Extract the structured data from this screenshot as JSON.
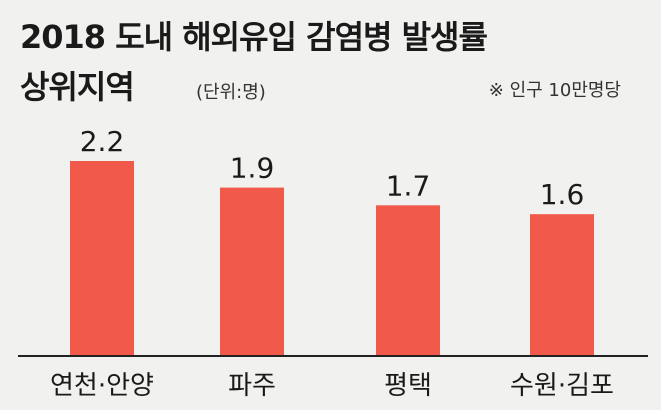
{
  "title_line1": "2018 도내 해외유입 감염병 발생률",
  "title_line2": "상위지역",
  "unit": "(단위:명)",
  "note": "※ 인구 10만명당",
  "colors": {
    "bar": "#f1594a",
    "axis": "#222222",
    "background": "#f1f1ef"
  },
  "chart_data": {
    "type": "bar",
    "title": "2018 도내 해외유입 감염병 발생률 상위지역",
    "categories": [
      "연천·안양",
      "파주",
      "평택",
      "수원·김포"
    ],
    "values": [
      2.2,
      1.9,
      1.7,
      1.6
    ],
    "value_labels": [
      "2.2",
      "1.9",
      "1.7",
      "1.6"
    ],
    "xlabel": "",
    "ylabel": "",
    "ylim": [
      0,
      2.2
    ],
    "grid": false,
    "legend": "none"
  }
}
